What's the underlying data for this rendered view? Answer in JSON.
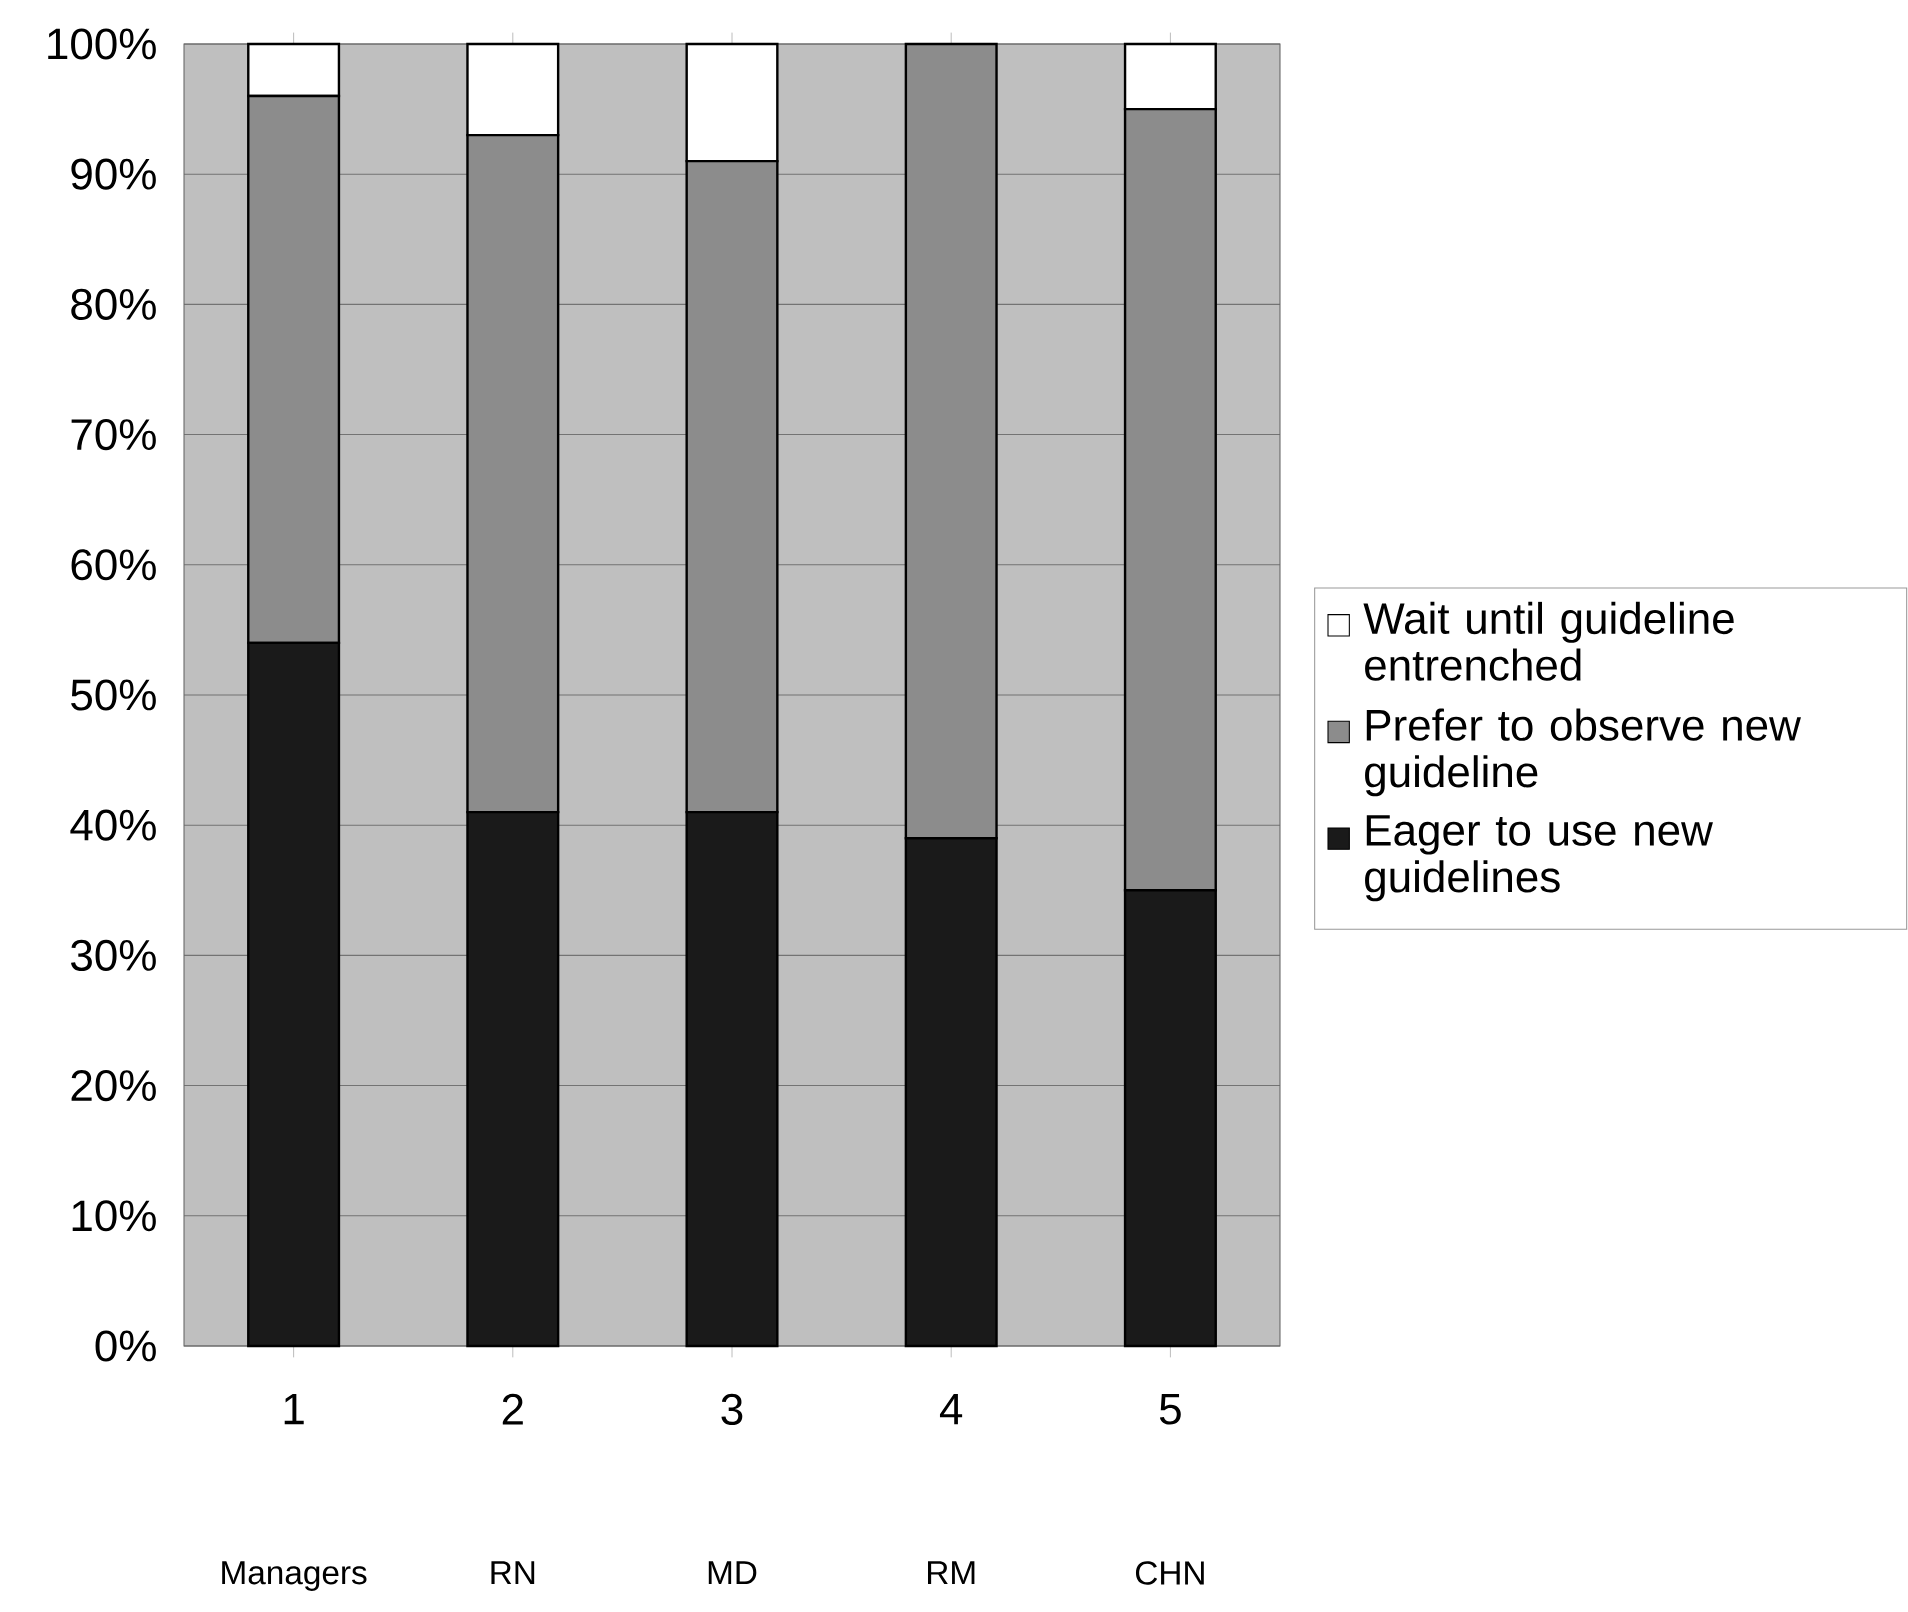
{
  "chart_data": {
    "type": "bar",
    "stacked": true,
    "categories": [
      "1",
      "2",
      "3",
      "4",
      "5"
    ],
    "series": [
      {
        "name": "Eager to use new guidelines",
        "color": "#1a1a1a",
        "values": [
          54,
          41,
          41,
          39,
          35
        ]
      },
      {
        "name": "Prefer to observe new guideline",
        "color": "#8c8c8c",
        "values": [
          42,
          52,
          50,
          61,
          60
        ]
      },
      {
        "name": "Wait until guideline entrenched",
        "color": "#ffffff",
        "values": [
          4,
          7,
          9,
          0,
          5
        ]
      }
    ],
    "ylim": [
      0,
      100
    ],
    "yticks": [
      {
        "value": 0,
        "label": "0%"
      },
      {
        "value": 10,
        "label": "10%"
      },
      {
        "value": 20,
        "label": "20%"
      },
      {
        "value": 30,
        "label": "30%"
      },
      {
        "value": 40,
        "label": "40%"
      },
      {
        "value": 50,
        "label": "50%"
      },
      {
        "value": 60,
        "label": "60%"
      },
      {
        "value": 70,
        "label": "70%"
      },
      {
        "value": 80,
        "label": "80%"
      },
      {
        "value": 90,
        "label": "90%"
      },
      {
        "value": 100,
        "label": "100%"
      }
    ],
    "grid": "y",
    "legend": "right",
    "annotations": [
      "Managers",
      "RN",
      "MD",
      "RM",
      "CHN"
    ]
  }
}
